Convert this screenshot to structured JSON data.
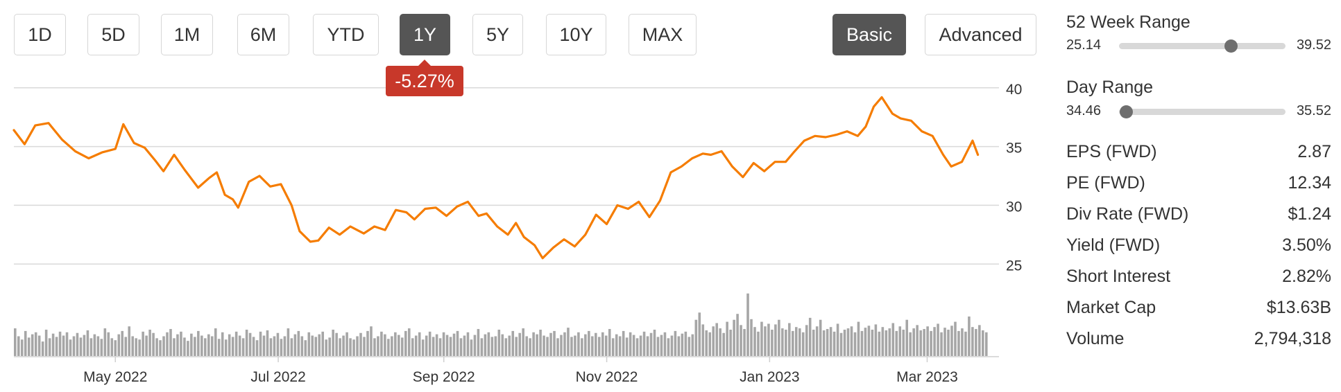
{
  "range_buttons": [
    "1D",
    "5D",
    "1M",
    "6M",
    "YTD",
    "1Y",
    "5Y",
    "10Y",
    "MAX"
  ],
  "active_range": "1Y",
  "change_badge": "-5.27%",
  "view_buttons": {
    "basic": "Basic",
    "advanced": "Advanced",
    "active": "Basic"
  },
  "colors": {
    "price_line": "#f57c00",
    "volume_bar": "#a6a6a6",
    "negative_badge": "#c8382a",
    "active_button": "#555555"
  },
  "ranges": {
    "week52": {
      "title": "52 Week Range",
      "low": "25.14",
      "high": "39.52",
      "current_fraction": 0.67
    },
    "day": {
      "title": "Day Range",
      "low": "34.46",
      "high": "35.52",
      "current_fraction": 0.04
    }
  },
  "stats": [
    {
      "label": "EPS (FWD)",
      "value": "2.87"
    },
    {
      "label": "PE (FWD)",
      "value": "12.34"
    },
    {
      "label": "Div Rate (FWD)",
      "value": "$1.24"
    },
    {
      "label": "Yield (FWD)",
      "value": "3.50%"
    },
    {
      "label": "Short Interest",
      "value": "2.82%"
    },
    {
      "label": "Market Cap",
      "value": "$13.63B"
    },
    {
      "label": "Volume",
      "value": "2,794,318"
    }
  ],
  "chart_data": {
    "type": "line",
    "y_ticks": [
      40,
      35,
      30,
      25
    ],
    "ylim": [
      23.6,
      40.4
    ],
    "x_tick_labels": [
      "May 2022",
      "Jul 2022",
      "Sep 2022",
      "Nov 2022",
      "Jan 2023",
      "Mar 2023"
    ],
    "x_tick_dates": [
      "2022-05-01",
      "2022-07-01",
      "2022-09-01",
      "2022-11-01",
      "2023-01-01",
      "2023-03-01"
    ],
    "x_range": [
      "2022-03-24",
      "2023-03-24"
    ],
    "grid": true,
    "series": [
      {
        "points": [
          [
            "2022-03-24",
            36.4
          ],
          [
            "2022-03-28",
            35.2
          ],
          [
            "2022-04-01",
            36.8
          ],
          [
            "2022-04-06",
            37.0
          ],
          [
            "2022-04-11",
            35.6
          ],
          [
            "2022-04-16",
            34.6
          ],
          [
            "2022-04-21",
            34.0
          ],
          [
            "2022-04-26",
            34.5
          ],
          [
            "2022-05-01",
            34.8
          ],
          [
            "2022-05-04",
            36.9
          ],
          [
            "2022-05-08",
            35.3
          ],
          [
            "2022-05-12",
            34.9
          ],
          [
            "2022-05-16",
            33.8
          ],
          [
            "2022-05-19",
            32.9
          ],
          [
            "2022-05-23",
            34.3
          ],
          [
            "2022-05-27",
            33.0
          ],
          [
            "2022-06-01",
            31.5
          ],
          [
            "2022-06-05",
            32.3
          ],
          [
            "2022-06-08",
            32.8
          ],
          [
            "2022-06-11",
            30.9
          ],
          [
            "2022-06-14",
            30.5
          ],
          [
            "2022-06-16",
            29.8
          ],
          [
            "2022-06-20",
            32.0
          ],
          [
            "2022-06-24",
            32.5
          ],
          [
            "2022-06-28",
            31.6
          ],
          [
            "2022-07-02",
            31.8
          ],
          [
            "2022-07-06",
            30.0
          ],
          [
            "2022-07-09",
            27.8
          ],
          [
            "2022-07-13",
            26.9
          ],
          [
            "2022-07-16",
            27.0
          ],
          [
            "2022-07-20",
            28.1
          ],
          [
            "2022-07-24",
            27.5
          ],
          [
            "2022-07-28",
            28.2
          ],
          [
            "2022-08-02",
            27.6
          ],
          [
            "2022-08-06",
            28.2
          ],
          [
            "2022-08-10",
            27.9
          ],
          [
            "2022-08-14",
            29.6
          ],
          [
            "2022-08-18",
            29.4
          ],
          [
            "2022-08-21",
            28.8
          ],
          [
            "2022-08-25",
            29.7
          ],
          [
            "2022-08-29",
            29.8
          ],
          [
            "2022-09-02",
            29.1
          ],
          [
            "2022-09-06",
            29.9
          ],
          [
            "2022-09-10",
            30.3
          ],
          [
            "2022-09-14",
            29.1
          ],
          [
            "2022-09-17",
            29.3
          ],
          [
            "2022-09-21",
            28.2
          ],
          [
            "2022-09-25",
            27.5
          ],
          [
            "2022-09-28",
            28.5
          ],
          [
            "2022-10-01",
            27.3
          ],
          [
            "2022-10-05",
            26.6
          ],
          [
            "2022-10-08",
            25.5
          ],
          [
            "2022-10-12",
            26.4
          ],
          [
            "2022-10-16",
            27.1
          ],
          [
            "2022-10-20",
            26.5
          ],
          [
            "2022-10-24",
            27.5
          ],
          [
            "2022-10-28",
            29.2
          ],
          [
            "2022-11-01",
            28.4
          ],
          [
            "2022-11-05",
            30.0
          ],
          [
            "2022-11-09",
            29.7
          ],
          [
            "2022-11-13",
            30.3
          ],
          [
            "2022-11-17",
            29.0
          ],
          [
            "2022-11-21",
            30.4
          ],
          [
            "2022-11-25",
            32.8
          ],
          [
            "2022-11-29",
            33.3
          ],
          [
            "2022-12-03",
            34.0
          ],
          [
            "2022-12-07",
            34.4
          ],
          [
            "2022-12-10",
            34.3
          ],
          [
            "2022-12-14",
            34.6
          ],
          [
            "2022-12-18",
            33.3
          ],
          [
            "2022-12-22",
            32.4
          ],
          [
            "2022-12-26",
            33.6
          ],
          [
            "2022-12-30",
            32.9
          ],
          [
            "2023-01-03",
            33.7
          ],
          [
            "2023-01-07",
            33.7
          ],
          [
            "2023-01-10",
            34.5
          ],
          [
            "2023-01-14",
            35.5
          ],
          [
            "2023-01-18",
            35.9
          ],
          [
            "2023-01-22",
            35.8
          ],
          [
            "2023-01-26",
            36.0
          ],
          [
            "2023-01-30",
            36.3
          ],
          [
            "2023-02-03",
            35.9
          ],
          [
            "2023-02-06",
            36.7
          ],
          [
            "2023-02-09",
            38.4
          ],
          [
            "2023-02-12",
            39.2
          ],
          [
            "2023-02-16",
            37.8
          ],
          [
            "2023-02-19",
            37.4
          ],
          [
            "2023-02-23",
            37.2
          ],
          [
            "2023-02-27",
            36.3
          ],
          [
            "2023-03-03",
            35.9
          ],
          [
            "2023-03-07",
            34.3
          ],
          [
            "2023-03-10",
            33.3
          ],
          [
            "2023-03-14",
            33.7
          ],
          [
            "2023-03-18",
            35.5
          ],
          [
            "2023-03-20",
            34.3
          ]
        ]
      }
    ],
    "volume_unit": "relative",
    "volume": [
      0.42,
      0.3,
      0.25,
      0.38,
      0.28,
      0.33,
      0.36,
      0.31,
      0.22,
      0.4,
      0.27,
      0.34,
      0.29,
      0.37,
      0.31,
      0.36,
      0.25,
      0.3,
      0.35,
      0.28,
      0.32,
      0.39,
      0.27,
      0.33,
      0.3,
      0.26,
      0.42,
      0.36,
      0.27,
      0.24,
      0.33,
      0.38,
      0.29,
      0.45,
      0.3,
      0.27,
      0.25,
      0.37,
      0.31,
      0.4,
      0.35,
      0.27,
      0.24,
      0.3,
      0.36,
      0.41,
      0.27,
      0.33,
      0.37,
      0.28,
      0.23,
      0.34,
      0.29,
      0.38,
      0.31,
      0.27,
      0.33,
      0.3,
      0.42,
      0.26,
      0.36,
      0.25,
      0.33,
      0.29,
      0.37,
      0.31,
      0.27,
      0.4,
      0.35,
      0.29,
      0.24,
      0.37,
      0.31,
      0.39,
      0.27,
      0.3,
      0.35,
      0.26,
      0.3,
      0.42,
      0.27,
      0.33,
      0.38,
      0.3,
      0.24,
      0.36,
      0.31,
      0.29,
      0.33,
      0.37,
      0.25,
      0.28,
      0.4,
      0.35,
      0.27,
      0.31,
      0.36,
      0.27,
      0.25,
      0.3,
      0.35,
      0.29,
      0.38,
      0.45,
      0.27,
      0.3,
      0.37,
      0.33,
      0.26,
      0.3,
      0.36,
      0.32,
      0.28,
      0.38,
      0.42,
      0.27,
      0.31,
      0.36,
      0.25,
      0.31,
      0.37,
      0.29,
      0.33,
      0.27,
      0.36,
      0.32,
      0.29,
      0.34,
      0.38,
      0.27,
      0.31,
      0.36,
      0.25,
      0.32,
      0.41,
      0.27,
      0.33,
      0.36,
      0.29,
      0.3,
      0.4,
      0.33,
      0.27,
      0.31,
      0.38,
      0.29,
      0.35,
      0.42,
      0.3,
      0.27,
      0.36,
      0.33,
      0.4,
      0.31,
      0.29,
      0.35,
      0.38,
      0.27,
      0.32,
      0.36,
      0.43,
      0.29,
      0.31,
      0.36,
      0.27,
      0.33,
      0.38,
      0.3,
      0.35,
      0.29,
      0.36,
      0.31,
      0.41,
      0.27,
      0.33,
      0.3,
      0.38,
      0.28,
      0.36,
      0.32,
      0.27,
      0.31,
      0.37,
      0.3,
      0.35,
      0.4,
      0.29,
      0.32,
      0.36,
      0.27,
      0.31,
      0.38,
      0.3,
      0.34,
      0.37,
      0.29,
      0.33,
      0.55,
      0.66,
      0.48,
      0.39,
      0.36,
      0.45,
      0.5,
      0.42,
      0.35,
      0.52,
      0.4,
      0.55,
      0.64,
      0.47,
      0.41,
      0.95,
      0.56,
      0.44,
      0.37,
      0.52,
      0.45,
      0.49,
      0.4,
      0.48,
      0.55,
      0.42,
      0.4,
      0.5,
      0.38,
      0.44,
      0.42,
      0.36,
      0.47,
      0.58,
      0.4,
      0.45,
      0.55,
      0.39,
      0.41,
      0.44,
      0.37,
      0.49,
      0.35,
      0.4,
      0.42,
      0.45,
      0.36,
      0.52,
      0.38,
      0.43,
      0.46,
      0.4,
      0.48,
      0.37,
      0.44,
      0.39,
      0.42,
      0.5,
      0.38,
      0.45,
      0.4,
      0.55,
      0.36,
      0.42,
      0.47,
      0.39,
      0.41,
      0.45,
      0.38,
      0.44,
      0.49,
      0.36,
      0.43,
      0.4,
      0.46,
      0.52,
      0.38,
      0.42,
      0.37,
      0.6,
      0.44,
      0.41,
      0.47,
      0.39,
      0.36
    ]
  }
}
